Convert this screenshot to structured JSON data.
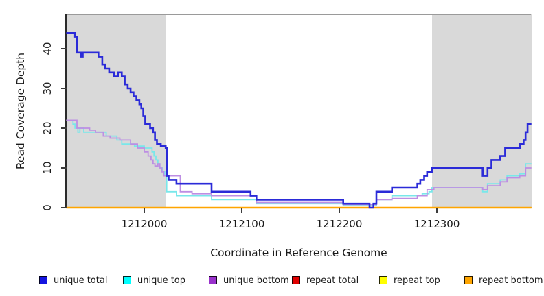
{
  "chart_data": {
    "type": "line",
    "step": true,
    "title": "",
    "xlabel": "Coordinate in Reference Genome",
    "ylabel": "Read Coverage Depth",
    "xlim": [
      1211920,
      1212397
    ],
    "ylim": [
      0,
      48
    ],
    "grid": false,
    "x_ticks": [
      {
        "value": 1212000,
        "label": "1212000"
      },
      {
        "value": 1212100,
        "label": "1212100"
      },
      {
        "value": 1212200,
        "label": "1212200"
      },
      {
        "value": 1212300,
        "label": "1212300"
      }
    ],
    "y_ticks": [
      {
        "value": 0,
        "label": "0"
      },
      {
        "value": 10,
        "label": "10"
      },
      {
        "value": 20,
        "label": "20"
      },
      {
        "value": 30,
        "label": "30"
      },
      {
        "value": 40,
        "label": "40"
      }
    ],
    "shaded_regions": [
      {
        "x0": 1211920,
        "x1": 1212022,
        "color": "#D9D9D9"
      },
      {
        "x0": 1212295,
        "x1": 1212397,
        "color": "#D9D9D9"
      }
    ],
    "series": [
      {
        "name": "unique total",
        "color": "#2B2BD8",
        "width": 2.6,
        "points": [
          [
            1211920,
            44
          ],
          [
            1211929,
            43
          ],
          [
            1211931,
            39
          ],
          [
            1211935,
            38
          ],
          [
            1211937,
            39
          ],
          [
            1211953,
            38
          ],
          [
            1211957,
            36
          ],
          [
            1211960,
            35
          ],
          [
            1211964,
            34
          ],
          [
            1211969,
            33
          ],
          [
            1211973,
            34
          ],
          [
            1211977,
            33
          ],
          [
            1211980,
            31
          ],
          [
            1211983,
            30
          ],
          [
            1211986,
            29
          ],
          [
            1211989,
            28
          ],
          [
            1211992,
            27
          ],
          [
            1211995,
            26
          ],
          [
            1211997,
            25
          ],
          [
            1211999,
            23
          ],
          [
            1212001,
            21
          ],
          [
            1212006,
            20
          ],
          [
            1212009,
            19
          ],
          [
            1212011,
            17
          ],
          [
            1212013,
            16
          ],
          [
            1212017,
            15.5
          ],
          [
            1212022,
            15
          ],
          [
            1212023,
            8
          ],
          [
            1212025,
            7
          ],
          [
            1212033,
            6
          ],
          [
            1212069,
            4
          ],
          [
            1212109,
            3
          ],
          [
            1212115,
            2
          ],
          [
            1212204,
            1
          ],
          [
            1212231,
            0
          ],
          [
            1212235,
            1
          ],
          [
            1212238,
            4
          ],
          [
            1212254,
            5
          ],
          [
            1212280,
            6
          ],
          [
            1212283,
            7
          ],
          [
            1212287,
            8
          ],
          [
            1212290,
            9
          ],
          [
            1212295,
            10
          ],
          [
            1212347,
            8
          ],
          [
            1212352,
            10
          ],
          [
            1212356,
            12
          ],
          [
            1212365,
            13
          ],
          [
            1212370,
            15
          ],
          [
            1212385,
            16
          ],
          [
            1212389,
            17
          ],
          [
            1212391,
            19
          ],
          [
            1212393,
            21
          ],
          [
            1212397,
            21
          ]
        ]
      },
      {
        "name": "unique top",
        "color": "#79E7EA",
        "width": 1.8,
        "points": [
          [
            1211920,
            22
          ],
          [
            1211927,
            21
          ],
          [
            1211929,
            20
          ],
          [
            1211932,
            19
          ],
          [
            1211934,
            20
          ],
          [
            1211938,
            19
          ],
          [
            1211961,
            18
          ],
          [
            1211972,
            17
          ],
          [
            1211977,
            16
          ],
          [
            1211990,
            15.5
          ],
          [
            1212000,
            15
          ],
          [
            1212008,
            14
          ],
          [
            1212010,
            13
          ],
          [
            1212012,
            12
          ],
          [
            1212014,
            11
          ],
          [
            1212016,
            10
          ],
          [
            1212019,
            9
          ],
          [
            1212021,
            8
          ],
          [
            1212023,
            4
          ],
          [
            1212033,
            3
          ],
          [
            1212069,
            2
          ],
          [
            1212115,
            1
          ],
          [
            1212204,
            0.5
          ],
          [
            1212238,
            2
          ],
          [
            1212254,
            3
          ],
          [
            1212285,
            3.5
          ],
          [
            1212292,
            4
          ],
          [
            1212295,
            5
          ],
          [
            1212347,
            4
          ],
          [
            1212352,
            6
          ],
          [
            1212365,
            7
          ],
          [
            1212372,
            8
          ],
          [
            1212385,
            8.5
          ],
          [
            1212391,
            11
          ],
          [
            1212397,
            11
          ]
        ]
      },
      {
        "name": "unique bottom",
        "color": "#BD8EE3",
        "width": 1.8,
        "points": [
          [
            1211920,
            22
          ],
          [
            1211931,
            20
          ],
          [
            1211944,
            19.5
          ],
          [
            1211950,
            19
          ],
          [
            1211958,
            18
          ],
          [
            1211965,
            17.5
          ],
          [
            1211975,
            17
          ],
          [
            1211986,
            16
          ],
          [
            1211993,
            15
          ],
          [
            1212000,
            14
          ],
          [
            1212004,
            13
          ],
          [
            1212007,
            12
          ],
          [
            1212009,
            11
          ],
          [
            1212011,
            10.5
          ],
          [
            1212014,
            11
          ],
          [
            1212016,
            10
          ],
          [
            1212018,
            9
          ],
          [
            1212020,
            8
          ],
          [
            1212037,
            4
          ],
          [
            1212049,
            3.5
          ],
          [
            1212069,
            3
          ],
          [
            1212115,
            1.3
          ],
          [
            1212204,
            0.8
          ],
          [
            1212238,
            2
          ],
          [
            1212254,
            2.3
          ],
          [
            1212280,
            3
          ],
          [
            1212290,
            4.5
          ],
          [
            1212297,
            5
          ],
          [
            1212347,
            4.5
          ],
          [
            1212352,
            5.5
          ],
          [
            1212365,
            6.5
          ],
          [
            1212372,
            7.5
          ],
          [
            1212385,
            8
          ],
          [
            1212391,
            10
          ],
          [
            1212397,
            10
          ]
        ]
      },
      {
        "name": "repeat total",
        "color": "#E00000",
        "width": 2,
        "points": [
          [
            1211920,
            0
          ],
          [
            1212397,
            0
          ]
        ]
      },
      {
        "name": "repeat top",
        "color": "#FFFF00",
        "width": 2,
        "points": [
          [
            1211920,
            0
          ],
          [
            1212397,
            0
          ]
        ]
      },
      {
        "name": "repeat bottom",
        "color": "#FFA500",
        "width": 2.4,
        "points": [
          [
            1211920,
            0
          ],
          [
            1212397,
            0
          ]
        ]
      }
    ],
    "legend_position": "bottom"
  },
  "legend": {
    "items": [
      {
        "label": "unique total",
        "color": "#1414E0"
      },
      {
        "label": "unique top",
        "color": "#00FFFF"
      },
      {
        "label": "unique bottom",
        "color": "#9932CC"
      },
      {
        "label": "repeat total",
        "color": "#E00000"
      },
      {
        "label": "repeat top",
        "color": "#FFFF00"
      },
      {
        "label": "repeat bottom",
        "color": "#FFA500"
      }
    ]
  },
  "colors": {
    "shaded_region": "#D9D9D9",
    "plot_top_border": "#9A9A9A",
    "axis": "#2B2B2B",
    "text": "#1A1A1A"
  }
}
